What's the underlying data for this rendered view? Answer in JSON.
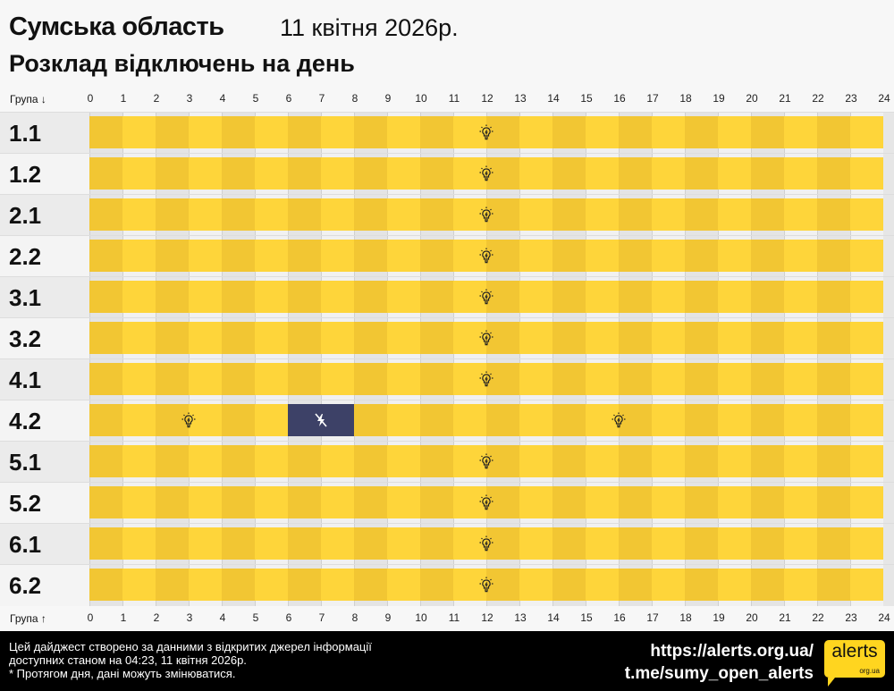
{
  "header": {
    "title": "Сумська область",
    "date": "11 квітня 2026р.",
    "subtitle": "Розклад відключень на день"
  },
  "axis": {
    "top_label": "Група ↓",
    "bottom_label": "Група ↑",
    "hours": [
      "0",
      "1",
      "2",
      "3",
      "4",
      "5",
      "6",
      "7",
      "8",
      "9",
      "10",
      "11",
      "12",
      "13",
      "14",
      "15",
      "16",
      "17",
      "18",
      "19",
      "20",
      "21",
      "22",
      "23",
      "24"
    ]
  },
  "colors": {
    "on_even": "#f2c633",
    "on_odd": "#fed53a",
    "off": "#3d4167",
    "grid_even": "#e4e4e4",
    "grid_odd": "#f1f1f1"
  },
  "groups": [
    {
      "name": "1.1",
      "segments": [
        {
          "from": 0,
          "to": 24,
          "status": "on"
        }
      ]
    },
    {
      "name": "1.2",
      "segments": [
        {
          "from": 0,
          "to": 24,
          "status": "on"
        }
      ]
    },
    {
      "name": "2.1",
      "segments": [
        {
          "from": 0,
          "to": 24,
          "status": "on"
        }
      ]
    },
    {
      "name": "2.2",
      "segments": [
        {
          "from": 0,
          "to": 24,
          "status": "on"
        }
      ]
    },
    {
      "name": "3.1",
      "segments": [
        {
          "from": 0,
          "to": 24,
          "status": "on"
        }
      ]
    },
    {
      "name": "3.2",
      "segments": [
        {
          "from": 0,
          "to": 24,
          "status": "on"
        }
      ]
    },
    {
      "name": "4.1",
      "segments": [
        {
          "from": 0,
          "to": 24,
          "status": "on"
        }
      ]
    },
    {
      "name": "4.2",
      "segments": [
        {
          "from": 0,
          "to": 6,
          "status": "on"
        },
        {
          "from": 6,
          "to": 8,
          "status": "off"
        },
        {
          "from": 8,
          "to": 24,
          "status": "on"
        }
      ]
    },
    {
      "name": "5.1",
      "segments": [
        {
          "from": 0,
          "to": 24,
          "status": "on"
        }
      ]
    },
    {
      "name": "5.2",
      "segments": [
        {
          "from": 0,
          "to": 24,
          "status": "on"
        }
      ]
    },
    {
      "name": "6.1",
      "segments": [
        {
          "from": 0,
          "to": 24,
          "status": "on"
        }
      ]
    },
    {
      "name": "6.2",
      "segments": [
        {
          "from": 0,
          "to": 24,
          "status": "on"
        }
      ]
    }
  ],
  "icons": {
    "on": "lightbulb-icon",
    "off": "power-off-icon"
  },
  "footer": {
    "line1": "Цей дайджест створено за данними з відкритих джерел інформації",
    "line2": "доступних станом на 04:23, 11 квітня 2026р.",
    "line3": "* Протягом дня, дані можуть змінюватися.",
    "site": "https://alerts.org.ua/",
    "telegram": "t.me/sumy_open_alerts",
    "logo_main": "alerts",
    "logo_sub": "org.ua"
  }
}
